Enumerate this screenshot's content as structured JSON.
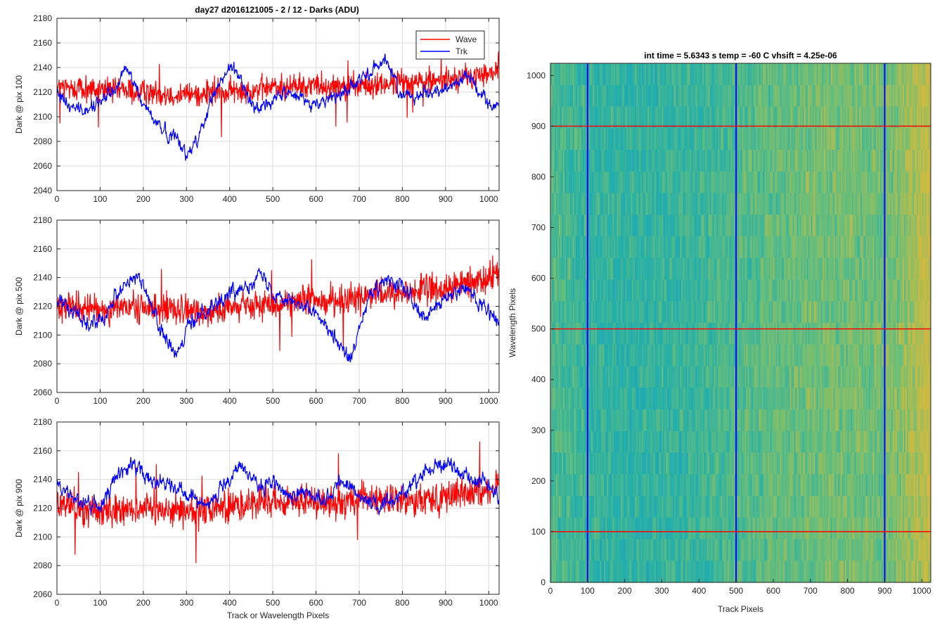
{
  "colors": {
    "wave": "#ff0000",
    "trk": "#0000ff",
    "grid": "#dcdcdc",
    "axis": "#262626"
  },
  "figure_title": "day27 d2016121005 - 2 / 12 - Darks (ADU)",
  "chart_data": [
    {
      "type": "line",
      "title": "day27 d2016121005 - 2 / 12 - Darks (ADU)",
      "ylabel": "Dark @ pix 100",
      "xlabel": "",
      "xlim": [
        0,
        1024
      ],
      "ylim": [
        2040,
        2180
      ],
      "xticks": [
        0,
        100,
        200,
        300,
        400,
        500,
        600,
        700,
        800,
        900,
        1000
      ],
      "yticks": [
        2040,
        2060,
        2080,
        2100,
        2120,
        2140,
        2160,
        2180
      ],
      "grid": true,
      "legend": {
        "position": "top-right",
        "entries": [
          "Wave",
          "Trk"
        ]
      },
      "series": [
        {
          "name": "Wave",
          "color": "#ff0000",
          "amp": 12,
          "x": [
            0,
            100,
            200,
            300,
            400,
            500,
            600,
            700,
            800,
            900,
            1000,
            1024
          ],
          "values": [
            2124,
            2122,
            2120,
            2118,
            2120,
            2124,
            2126,
            2124,
            2128,
            2130,
            2134,
            2140
          ]
        },
        {
          "name": "Trk",
          "color": "#0000ff",
          "amp": 4,
          "x": [
            0,
            30,
            60,
            100,
            140,
            160,
            180,
            200,
            230,
            260,
            280,
            300,
            320,
            340,
            360,
            380,
            400,
            420,
            440,
            460,
            500,
            530,
            560,
            600,
            650,
            700,
            720,
            760,
            800,
            850,
            900,
            950,
            1000,
            1024
          ],
          "values": [
            2120,
            2110,
            2104,
            2112,
            2124,
            2140,
            2126,
            2110,
            2096,
            2084,
            2086,
            2066,
            2080,
            2094,
            2116,
            2128,
            2140,
            2134,
            2118,
            2108,
            2112,
            2120,
            2116,
            2110,
            2118,
            2128,
            2134,
            2148,
            2116,
            2120,
            2122,
            2134,
            2112,
            2108
          ]
        }
      ]
    },
    {
      "type": "line",
      "ylabel": "Dark @ pix 500",
      "xlabel": "",
      "xlim": [
        0,
        1024
      ],
      "ylim": [
        2060,
        2180
      ],
      "xticks": [
        0,
        100,
        200,
        300,
        400,
        500,
        600,
        700,
        800,
        900,
        1000
      ],
      "yticks": [
        2060,
        2080,
        2100,
        2120,
        2140,
        2160,
        2180
      ],
      "grid": true,
      "series": [
        {
          "name": "Wave",
          "color": "#ff0000",
          "amp": 12,
          "x": [
            0,
            100,
            200,
            300,
            400,
            500,
            600,
            700,
            800,
            900,
            1000,
            1024
          ],
          "values": [
            2120,
            2118,
            2120,
            2116,
            2118,
            2122,
            2124,
            2126,
            2130,
            2132,
            2140,
            2144
          ]
        },
        {
          "name": "Trk",
          "color": "#0000ff",
          "amp": 4,
          "x": [
            0,
            40,
            80,
            110,
            140,
            180,
            200,
            230,
            260,
            280,
            300,
            340,
            380,
            420,
            470,
            500,
            540,
            580,
            620,
            650,
            680,
            720,
            760,
            800,
            850,
            900,
            950,
            1000,
            1024
          ],
          "values": [
            2124,
            2116,
            2108,
            2114,
            2130,
            2142,
            2134,
            2112,
            2092,
            2084,
            2104,
            2118,
            2124,
            2132,
            2142,
            2130,
            2126,
            2118,
            2110,
            2096,
            2082,
            2124,
            2138,
            2134,
            2110,
            2126,
            2132,
            2116,
            2108
          ]
        }
      ]
    },
    {
      "type": "line",
      "ylabel": "Dark @ pix 900",
      "xlabel": "Track or Wavelength Pixels",
      "xlim": [
        0,
        1024
      ],
      "ylim": [
        2060,
        2180
      ],
      "xticks": [
        0,
        100,
        200,
        300,
        400,
        500,
        600,
        700,
        800,
        900,
        1000
      ],
      "yticks": [
        2060,
        2080,
        2100,
        2120,
        2140,
        2160,
        2180
      ],
      "grid": true,
      "series": [
        {
          "name": "Wave",
          "color": "#ff0000",
          "amp": 13,
          "x": [
            0,
            100,
            200,
            300,
            400,
            500,
            600,
            700,
            800,
            900,
            1000,
            1024
          ],
          "values": [
            2122,
            2118,
            2120,
            2118,
            2122,
            2124,
            2124,
            2126,
            2126,
            2128,
            2132,
            2136
          ]
        },
        {
          "name": "Trk",
          "color": "#0000ff",
          "amp": 4,
          "x": [
            0,
            50,
            100,
            140,
            180,
            220,
            260,
            300,
            350,
            400,
            430,
            470,
            500,
            540,
            580,
            620,
            660,
            700,
            740,
            780,
            820,
            860,
            900,
            950,
            1000,
            1024
          ],
          "values": [
            2136,
            2126,
            2120,
            2144,
            2150,
            2138,
            2140,
            2128,
            2124,
            2138,
            2150,
            2132,
            2138,
            2128,
            2132,
            2124,
            2140,
            2130,
            2120,
            2126,
            2136,
            2148,
            2152,
            2142,
            2136,
            2128
          ]
        }
      ]
    },
    {
      "type": "heatmap",
      "title": "int time = 5.6343 s    temp = -60 C    vhsift = 4.25e-06",
      "xlabel": "Track Pixels",
      "ylabel": "Wavelength Pixels",
      "xlim": [
        0,
        1024
      ],
      "ylim": [
        0,
        1024
      ],
      "xticks": [
        0,
        100,
        200,
        300,
        400,
        500,
        600,
        700,
        800,
        900,
        1000
      ],
      "yticks": [
        0,
        100,
        200,
        300,
        400,
        500,
        600,
        700,
        800,
        900,
        1000
      ],
      "grid": false,
      "colormap": [
        "#1b9fc4",
        "#26b0a8",
        "#6cbe78",
        "#c0bc48",
        "#e0b53c"
      ],
      "column_profile": {
        "x": [
          0,
          100,
          200,
          300,
          400,
          500,
          600,
          700,
          800,
          900,
          960,
          1024
        ],
        "level": [
          0.4,
          0.3,
          0.28,
          0.3,
          0.32,
          0.4,
          0.46,
          0.5,
          0.52,
          0.5,
          0.62,
          0.8
        ]
      },
      "vertical_lines": {
        "x": [
          100,
          500,
          900
        ],
        "color": "#0000ff"
      },
      "horizontal_lines": {
        "y": [
          100,
          500,
          900
        ],
        "color": "#ff0000"
      }
    }
  ]
}
